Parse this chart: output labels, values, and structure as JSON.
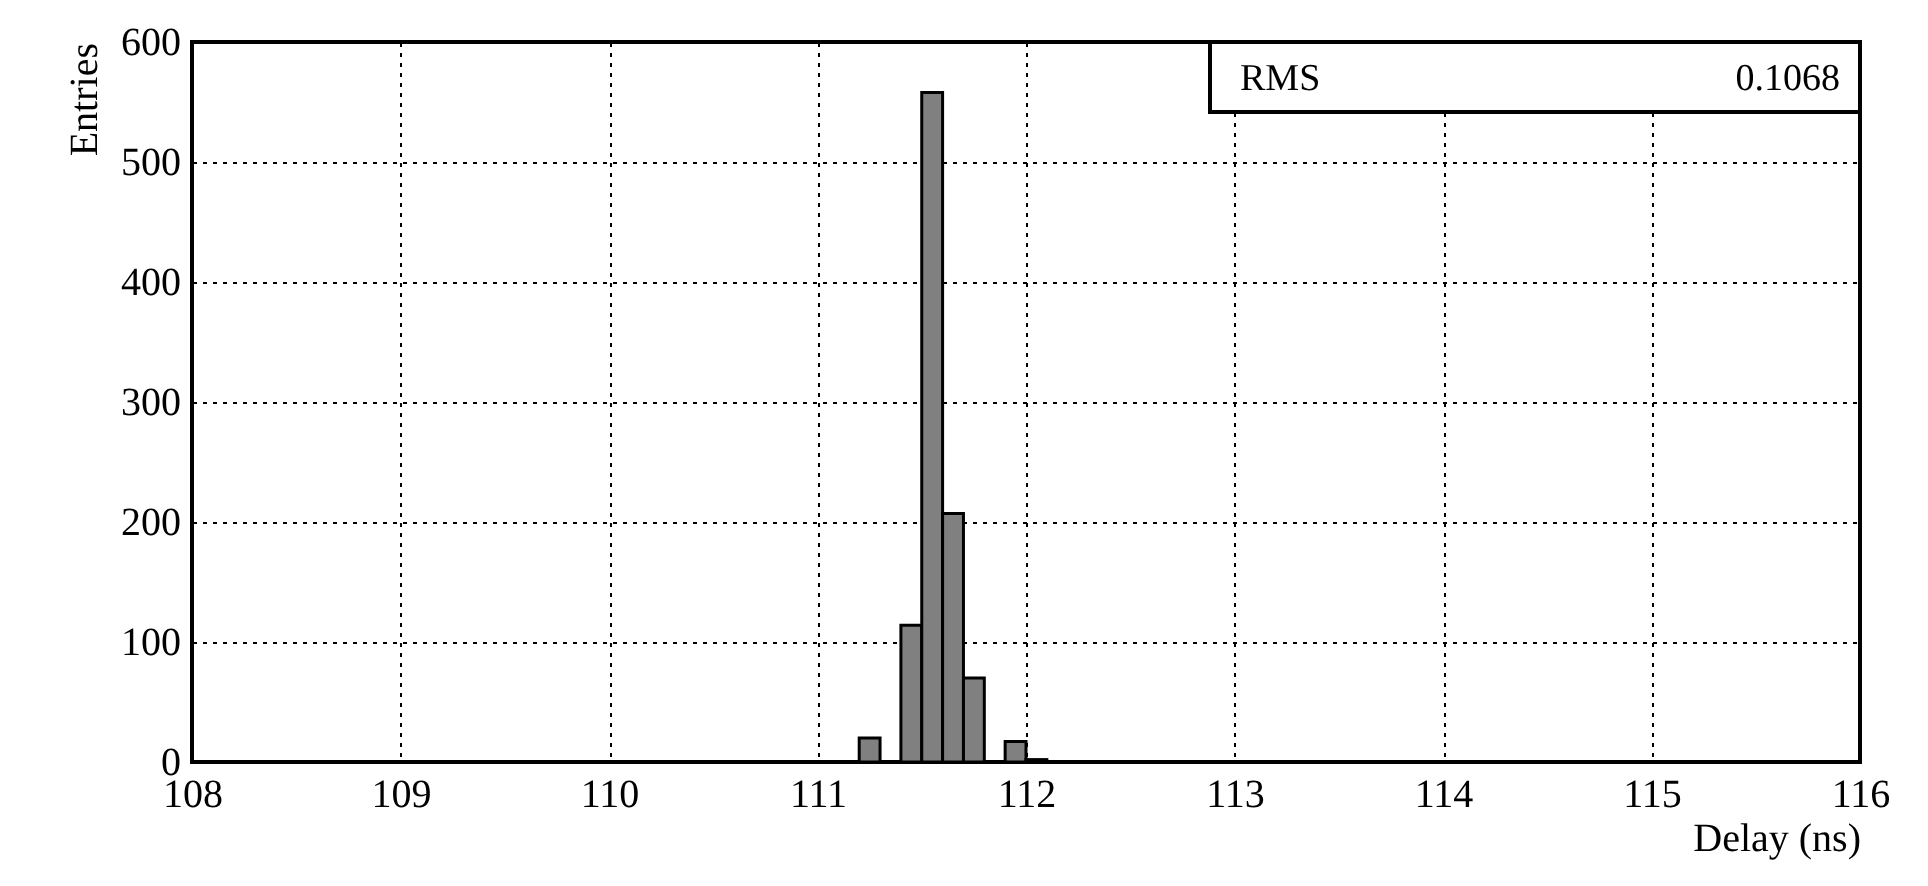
{
  "chart_data": {
    "type": "histogram",
    "xlabel": "Delay (ns)",
    "ylabel": "Entries",
    "bins": [
      111.2,
      111.3,
      111.4,
      111.5,
      111.6,
      111.7,
      111.8,
      111.9,
      112.0,
      112.1
    ],
    "values": [
      20,
      0,
      114,
      558,
      207,
      70,
      0,
      17,
      2
    ],
    "color": "#808080",
    "xlim": [
      108,
      116
    ],
    "xticks": [
      108,
      109,
      110,
      111,
      112,
      113,
      114,
      115,
      116
    ],
    "ylim": [
      0,
      600
    ],
    "yticks": [
      0,
      100,
      200,
      300,
      400,
      500,
      600
    ],
    "grid": true,
    "annotations": [
      "RMS",
      "0.1068"
    ]
  }
}
